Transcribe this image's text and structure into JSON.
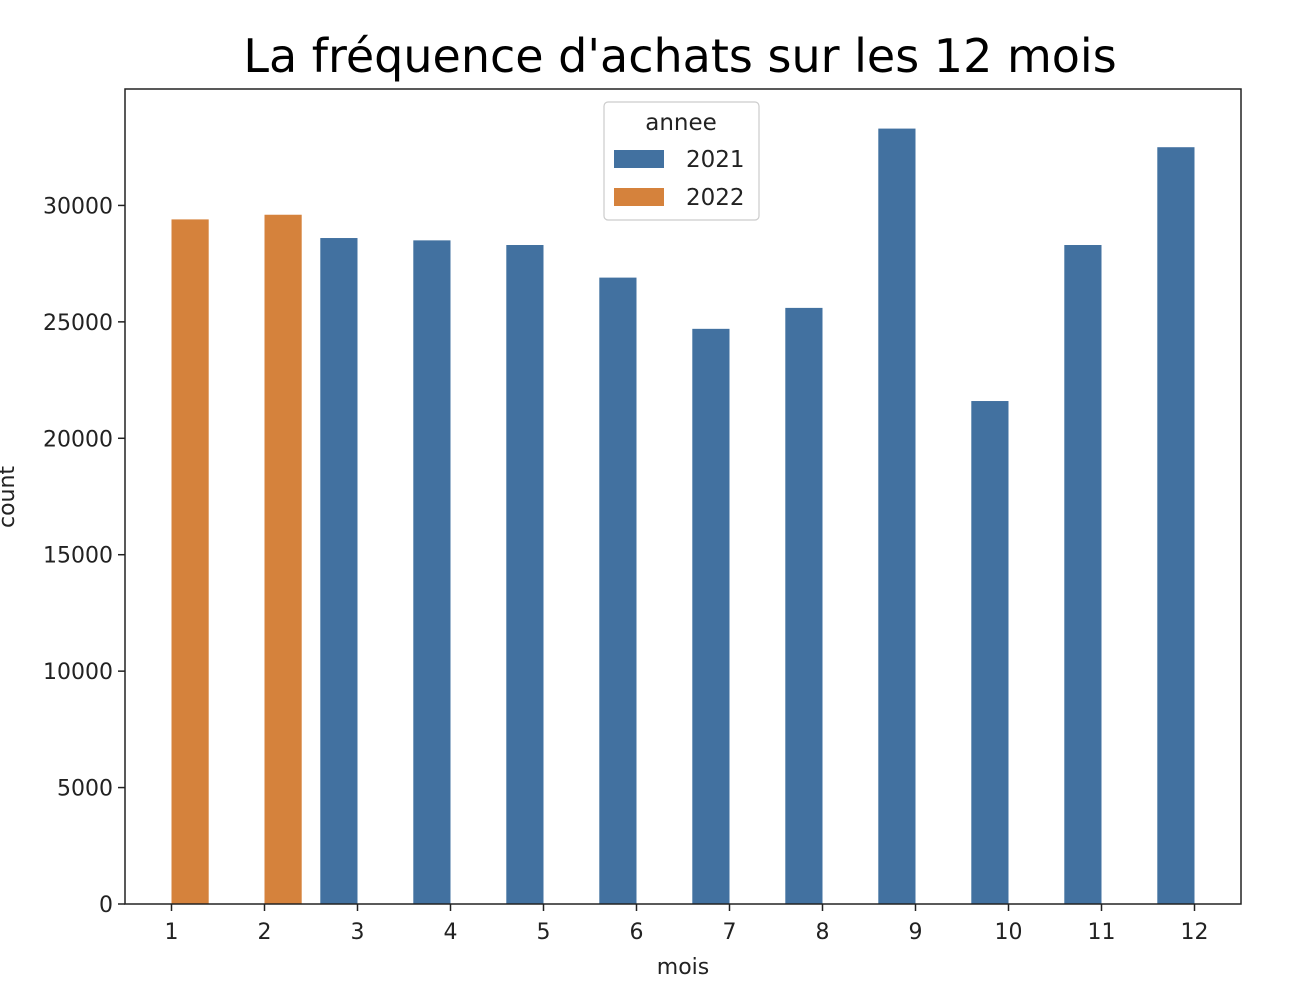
{
  "chart_data": {
    "type": "bar",
    "title": "La fréquence d'achats sur les 12 mois",
    "xlabel": "mois",
    "ylabel": "count",
    "categories": [
      "1",
      "2",
      "3",
      "4",
      "5",
      "6",
      "7",
      "8",
      "9",
      "10",
      "11",
      "12"
    ],
    "series": [
      {
        "name": "2021",
        "color": "#4271a0",
        "values": [
          null,
          null,
          28600,
          28500,
          28300,
          26900,
          24700,
          25600,
          33300,
          21600,
          28300,
          32500
        ]
      },
      {
        "name": "2022",
        "color": "#d5823c",
        "values": [
          29400,
          29600,
          null,
          null,
          null,
          null,
          null,
          null,
          null,
          null,
          null,
          null
        ]
      }
    ],
    "ylim": [
      0,
      35000
    ],
    "yticks": [
      0,
      5000,
      10000,
      15000,
      20000,
      25000,
      30000
    ],
    "grid": false,
    "legend": {
      "title": "annee",
      "position": "top-center",
      "entries": [
        "2021",
        "2022"
      ]
    }
  }
}
